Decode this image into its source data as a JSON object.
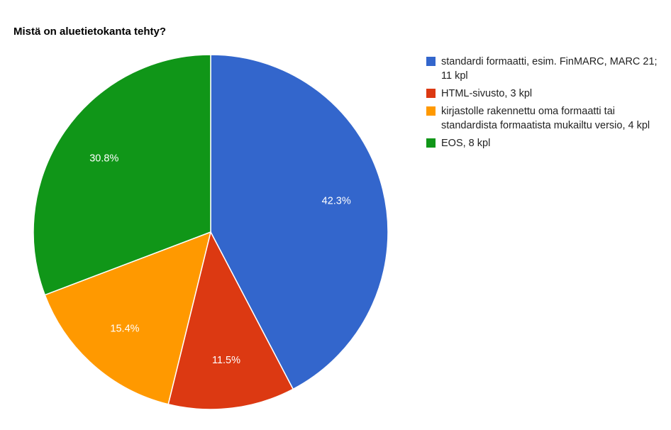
{
  "chart_data": {
    "type": "pie",
    "title": "Mistä on aluetietokanta tehty?",
    "slices": [
      {
        "label": "standardi formaatti, esim. FinMARC, MARC 21; 11 kpl",
        "value": 11,
        "percent_label": "42.3%",
        "color": "#3366cc"
      },
      {
        "label": "HTML-sivusto, 3 kpl",
        "value": 3,
        "percent_label": "11.5%",
        "color": "#dc3912"
      },
      {
        "label": "kirjastolle rakennettu oma formaatti tai standardista formaatista mukailtu versio, 4 kpl",
        "value": 4,
        "percent_label": "15.4%",
        "color": "#ff9900"
      },
      {
        "label": "EOS, 8 kpl",
        "value": 8,
        "percent_label": "30.8%",
        "color": "#109618"
      }
    ],
    "legend_position": "right"
  }
}
